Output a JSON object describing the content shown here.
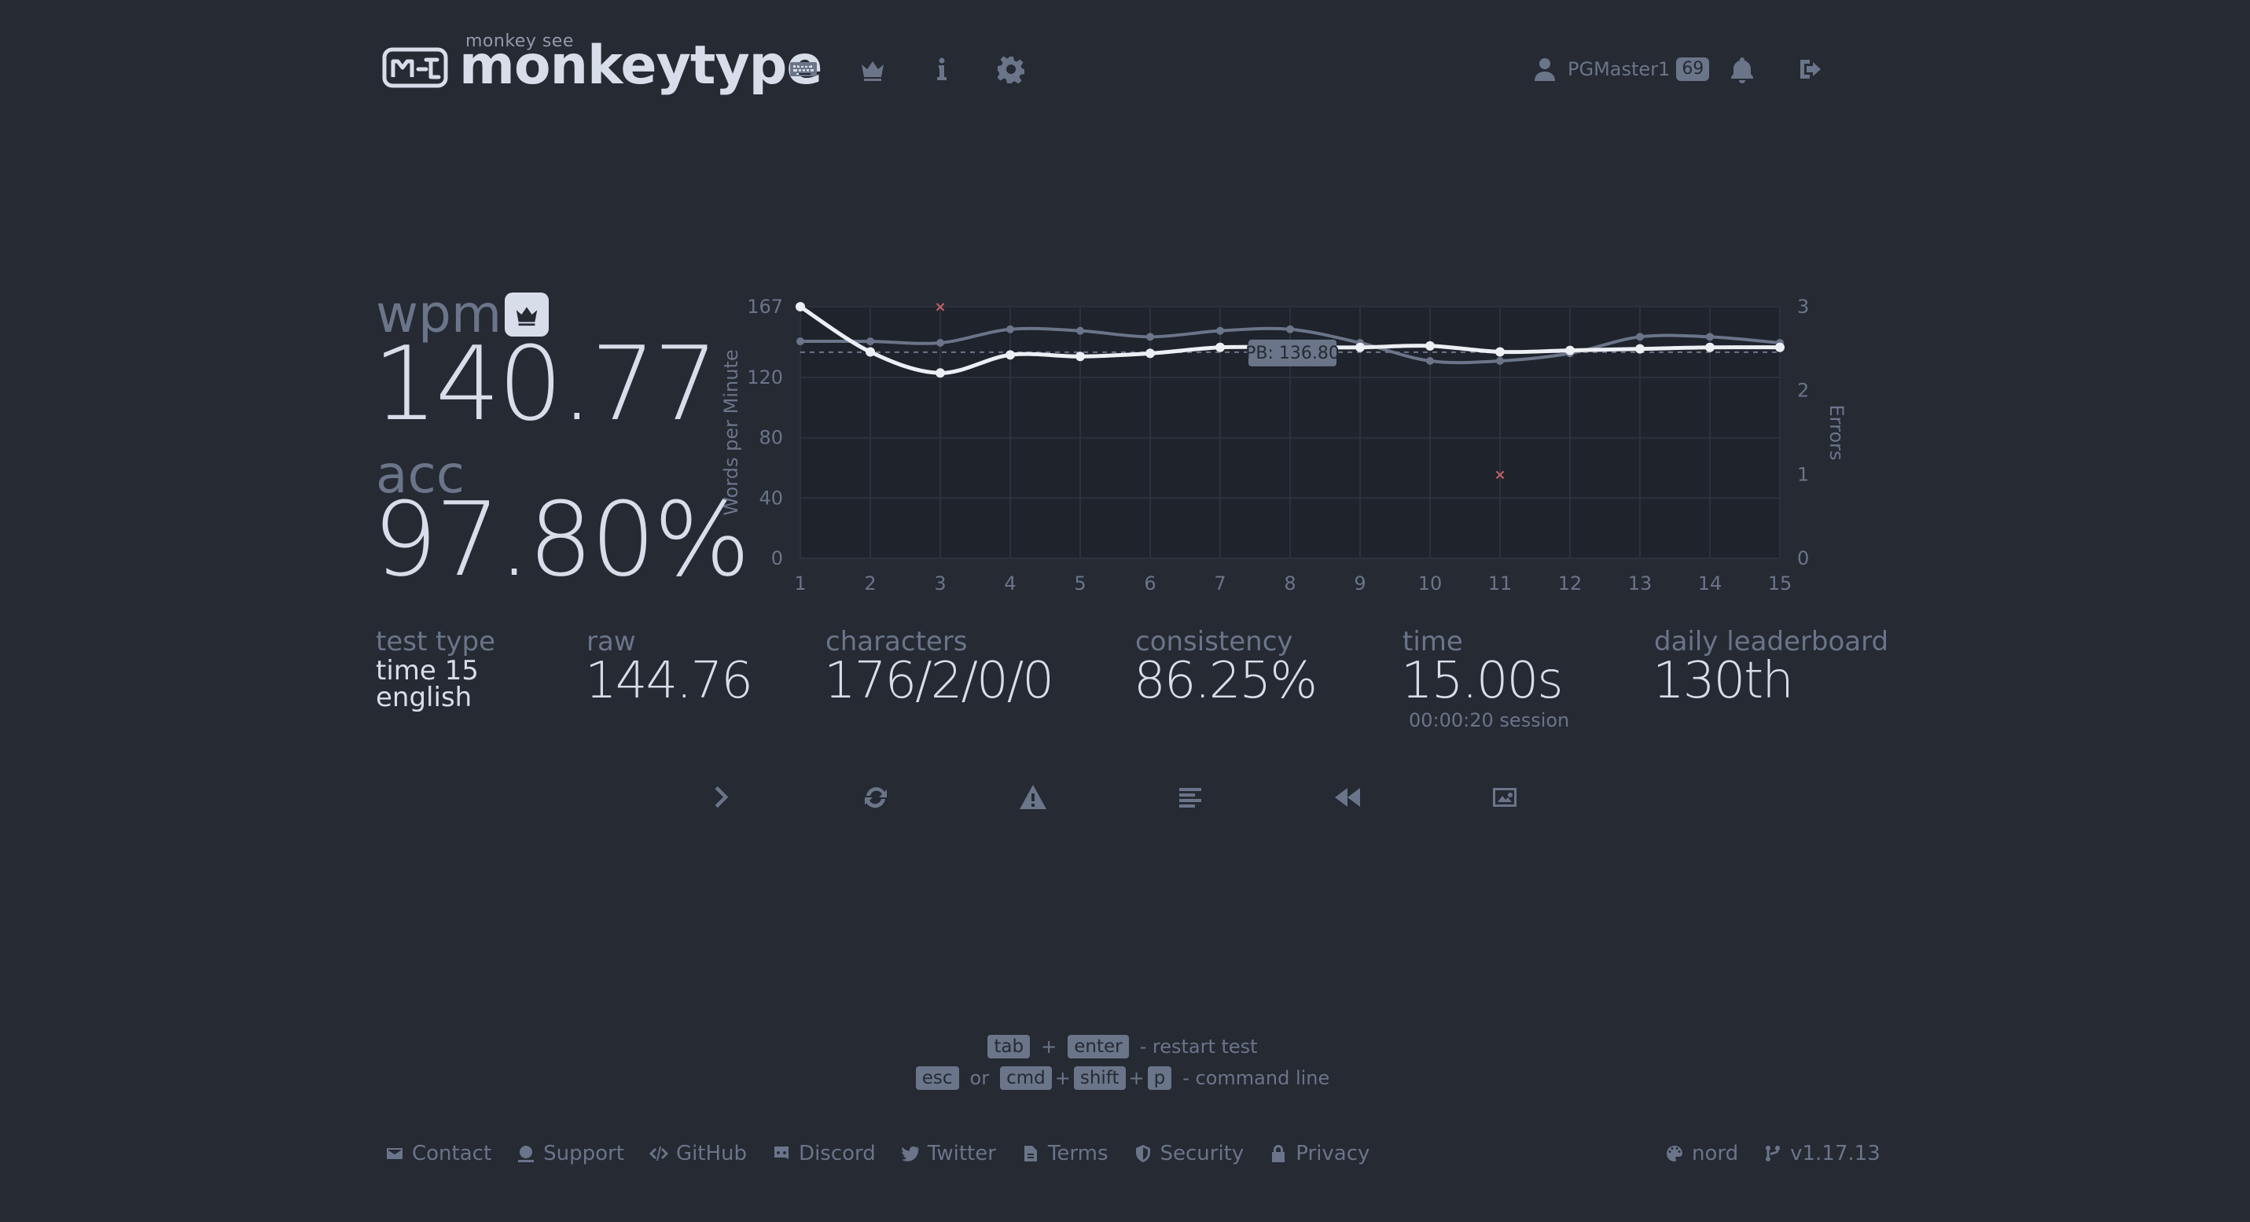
{
  "header": {
    "logo_top": "monkey see",
    "logo_text": "monkeytype",
    "nav": [
      {
        "name": "keyboard-icon"
      },
      {
        "name": "crown-icon"
      },
      {
        "name": "info-icon"
      },
      {
        "name": "gear-icon"
      }
    ],
    "user": {
      "name": "PGMaster1",
      "level": "69"
    }
  },
  "stats": {
    "wpm_label": "wpm",
    "wpm": "140.77",
    "acc_label": "acc",
    "acc": "97.80%",
    "test_type_label": "test type",
    "test_type_line1": "time 15",
    "test_type_line2": "english",
    "raw_label": "raw",
    "raw": "144.76",
    "characters_label": "characters",
    "characters": "176/2/0/0",
    "consistency_label": "consistency",
    "consistency": "86.25%",
    "time_label": "time",
    "time": "15.00s",
    "session": "00:00:20 session",
    "leaderboard_label": "daily leaderboard",
    "leaderboard": "130th"
  },
  "chart_data": {
    "type": "line",
    "x": [
      1,
      2,
      3,
      4,
      5,
      6,
      7,
      8,
      9,
      10,
      11,
      12,
      13,
      14,
      15
    ],
    "x_tick_labels": [
      "1",
      "2",
      "3",
      "4",
      "5",
      "6",
      "7",
      "8",
      "9",
      "10",
      "11",
      "12",
      "13",
      "14",
      "15"
    ],
    "ylabel": "Words per Minute",
    "y2label": "Errors",
    "ylim": [
      0,
      167
    ],
    "y_ticks": [
      "0",
      "40",
      "80",
      "120",
      "167"
    ],
    "y2lim": [
      0,
      3
    ],
    "y2_ticks": [
      "0",
      "1",
      "2",
      "3"
    ],
    "pb_value": 136.8,
    "pb_label": "PB: 136.80",
    "series": [
      {
        "values": [
          144,
          144,
          143,
          152,
          151,
          147,
          151,
          152,
          143,
          131,
          131,
          136,
          147,
          147,
          143
        ],
        "color": "#6b7589"
      },
      {
        "values": [
          167,
          137,
          123,
          135,
          134,
          136,
          140,
          140,
          140,
          141,
          137,
          138,
          139,
          140,
          140
        ],
        "color": "#eceff4"
      }
    ],
    "errors": [
      {
        "x": 3,
        "y": 3
      },
      {
        "x": 11,
        "y": 1
      }
    ],
    "error_color": "#bf616a"
  },
  "actions": [
    {
      "name": "next-test-button"
    },
    {
      "name": "restart-test-button"
    },
    {
      "name": "practice-missed-button"
    },
    {
      "name": "word-history-button"
    },
    {
      "name": "watch-replay-button"
    },
    {
      "name": "screenshot-button"
    }
  ],
  "hints": {
    "tab": "tab",
    "plus": "+",
    "enter": "enter",
    "restart": "- restart test",
    "esc": "esc",
    "or": "or",
    "cmd": "cmd",
    "shift": "shift",
    "p": "p",
    "command_line": "- command line"
  },
  "footer": {
    "links": [
      {
        "label": "Contact",
        "icon": "envelope-icon"
      },
      {
        "label": "Support",
        "icon": "donate-icon"
      },
      {
        "label": "GitHub",
        "icon": "code-icon"
      },
      {
        "label": "Discord",
        "icon": "discord-icon"
      },
      {
        "label": "Twitter",
        "icon": "twitter-icon"
      },
      {
        "label": "Terms",
        "icon": "file-icon"
      },
      {
        "label": "Security",
        "icon": "shield-icon"
      },
      {
        "label": "Privacy",
        "icon": "lock-icon"
      }
    ],
    "theme": "nord",
    "version": "v1.17.13"
  },
  "colors": {
    "bg": "#252a33",
    "main": "#d8dee9",
    "sub": "#6b7589",
    "error": "#bf616a"
  }
}
